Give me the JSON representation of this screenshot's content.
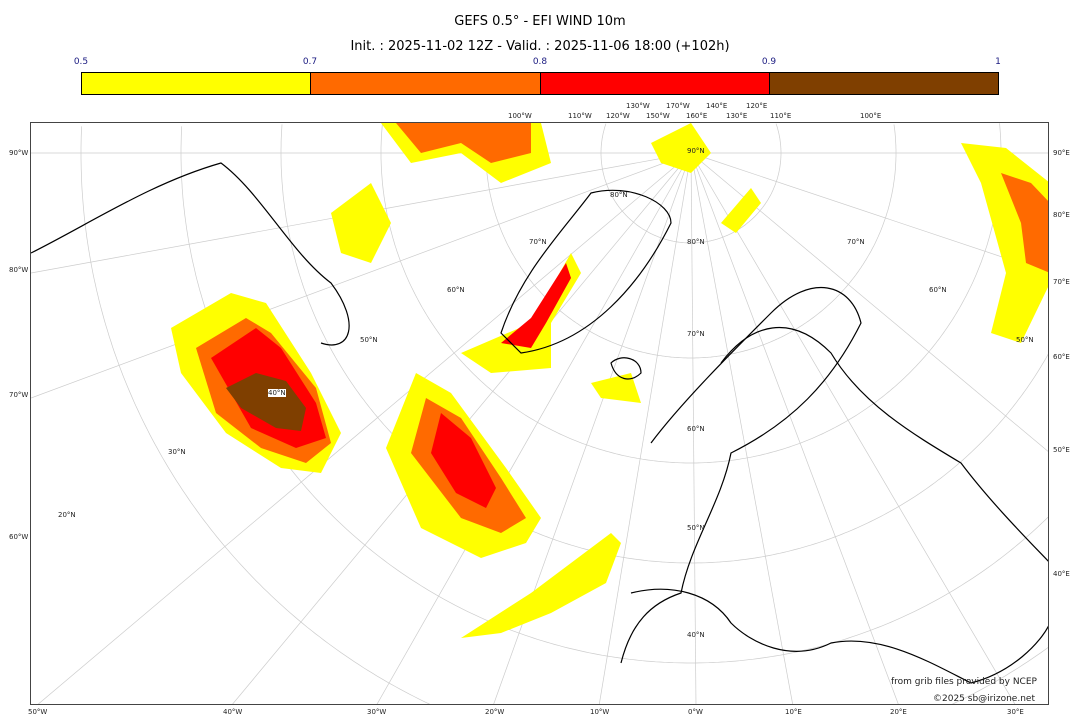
{
  "title": "GEFS 0.5° - EFI WIND 10m",
  "subtitle": "Init. : 2025-11-02 12Z - Valid. : 2025-11-06 18:00 (+102h)",
  "colorbar": {
    "ticks": [
      "0.5",
      "0.7",
      "0.8",
      "0.9",
      "1"
    ],
    "colors": [
      "#ffff00",
      "#ff6a00",
      "#ff0000",
      "#7f3f00"
    ]
  },
  "labels": {
    "top": [
      "100°W",
      "110°W",
      "120°W",
      "130°W",
      "150°W",
      "170°W",
      "160°E",
      "140°E",
      "130°E",
      "120°E",
      "110°E",
      "100°E"
    ],
    "bottom": [
      "50°W",
      "40°W",
      "30°W",
      "20°W",
      "10°W",
      "0°W",
      "10°E",
      "20°E",
      "30°E"
    ],
    "left": [
      "90°W",
      "80°W",
      "70°W",
      "60°W"
    ],
    "right": [
      "90°E",
      "80°E",
      "70°E",
      "60°E",
      "50°E",
      "40°E"
    ],
    "lat": [
      "90°N",
      "80°N",
      "70°N",
      "60°N",
      "50°N",
      "40°N",
      "30°N",
      "20°N",
      "80°N",
      "70°N",
      "60°N",
      "50°N",
      "40°N",
      "70°N",
      "60°N",
      "50°N"
    ]
  },
  "credits": {
    "source": "from grib files provided by NCEP",
    "copyright": "©2025 sb@irizone.net"
  }
}
